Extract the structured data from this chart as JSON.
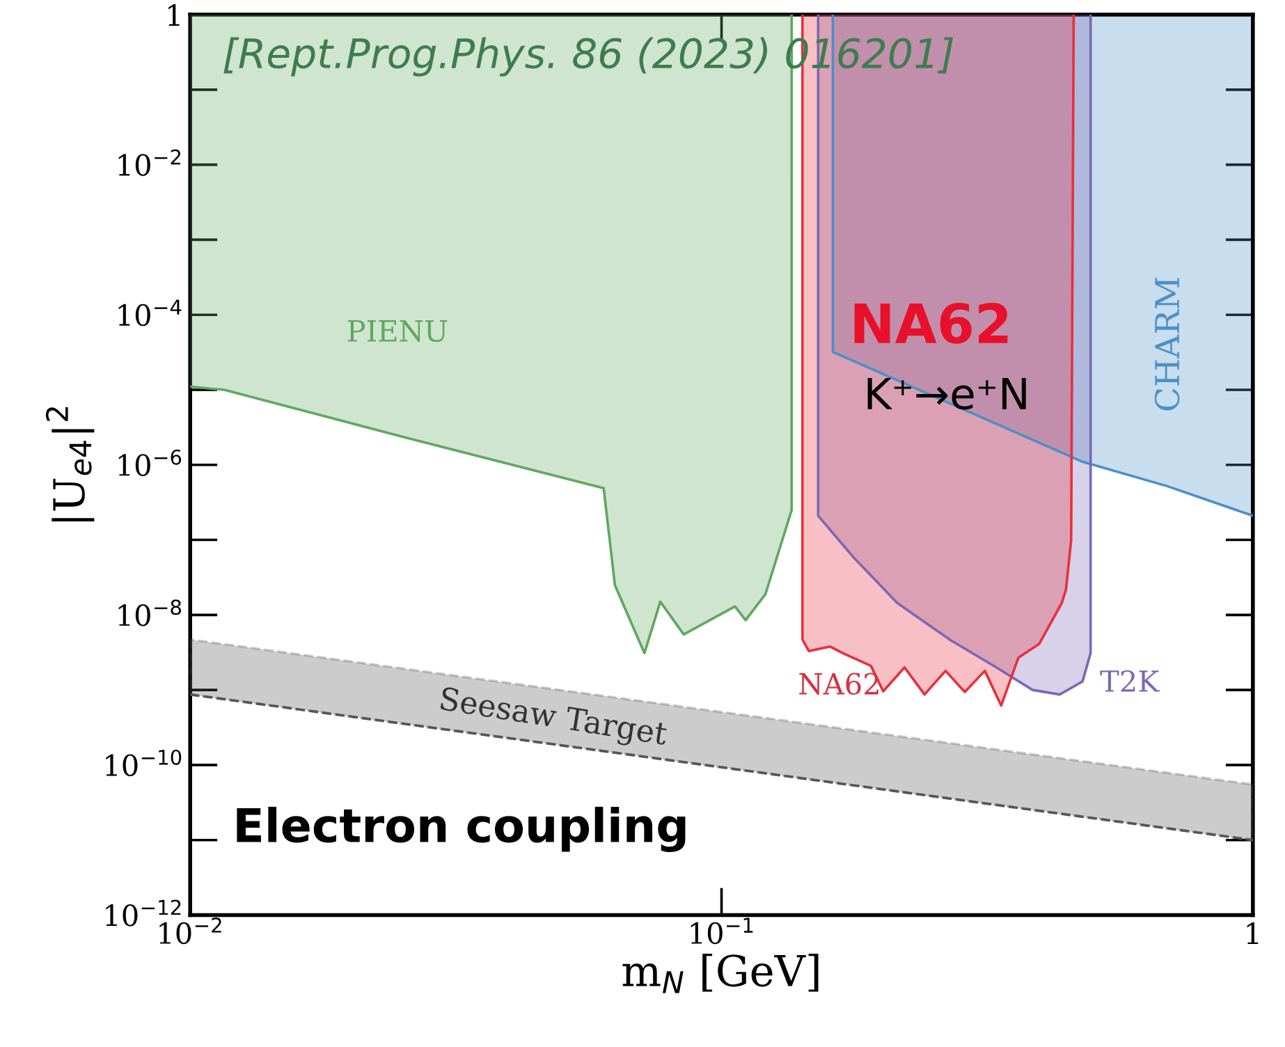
{
  "chart_data": {
    "type": "line",
    "xlabel": "m$_{N}$ [GeV]",
    "ylabel": "|U$_{e4}$|$^{2}$",
    "log": "xy",
    "legend": false,
    "grid": false,
    "xlim": [
      0.01,
      1
    ],
    "xticks": [
      {
        "value": 0.01,
        "label": "10$^{−2}$"
      },
      {
        "value": 0.1,
        "label": "10$^{−1}$"
      },
      1
    ],
    "ylim": [
      1e-12,
      1
    ],
    "yticks": [
      {
        "value": 1e-12,
        "label": "10$^{−12}$"
      },
      {
        "value": 1e-10,
        "label": "10$^{−10}$"
      },
      {
        "value": 1e-08,
        "label": "10$^{−8}$"
      },
      {
        "value": 1e-06,
        "label": "10$^{−6}$"
      },
      {
        "value": 0.0001,
        "label": "10$^{−4}$"
      },
      {
        "value": 0.01,
        "label": "10$^{−2}$"
      },
      1
    ],
    "series": [
      {
        "color": "#4a90c8",
        "x": [
          0.162,
          0.162,
          0.478,
          0.69,
          1.0
        ],
        "values": [
          1,
          3.2e-05,
          1.1e-06,
          5.2e-07,
          2.1e-07
        ],
        "lower": [
          1,
          3.2e-05,
          1.1e-06,
          5.2e-07,
          2.1e-07
        ],
        "upper": [
          1,
          1,
          1,
          1,
          1
        ]
      },
      {
        "color": "#7b68b5",
        "x": [
          0.152,
          0.152,
          0.177,
          0.214,
          0.27,
          0.329,
          0.385,
          0.433,
          0.478,
          0.495,
          0.495
        ],
        "values": [
          1,
          2.1e-07,
          5.9e-08,
          1.45e-08,
          4.6e-09,
          2e-09,
          1e-09,
          8.7e-10,
          1.3e-09,
          3.1e-09,
          1
        ],
        "lower": [
          1,
          2.1e-07,
          5.9e-08,
          1.45e-08,
          4.6e-09,
          2e-09,
          1e-09,
          8.7e-10,
          1.3e-09,
          3.1e-09,
          1
        ],
        "upper": [
          1,
          1,
          1,
          1,
          1,
          1,
          1,
          1,
          1,
          1,
          1
        ]
      },
      {
        "color": "#5fa85f",
        "x": [
          0.01,
          0.0116,
          0.0255,
          0.06,
          0.063,
          0.0716,
          0.0767,
          0.0849,
          0.106,
          0.111,
          0.121,
          0.1355,
          0.1355
        ],
        "values": [
          1.1e-05,
          1e-05,
          2.3e-06,
          4.9e-07,
          2.5e-08,
          3.1e-09,
          1.5e-08,
          5.5e-09,
          1.3e-08,
          8.5e-09,
          1.9e-08,
          2.5e-07,
          1
        ],
        "lower": [
          1.1e-05,
          1e-05,
          2.3e-06,
          4.9e-07,
          2.5e-08,
          3.1e-09,
          1.5e-08,
          5.5e-09,
          1.3e-08,
          8.5e-09,
          1.9e-08,
          2.5e-07,
          1
        ],
        "upper": [
          1,
          1,
          1,
          1,
          1,
          1,
          1,
          1,
          1,
          1,
          1,
          1,
          1
        ]
      },
      {
        "color": "#e8303c",
        "x": [
          0.142,
          0.142,
          0.146,
          0.16,
          0.169,
          0.191,
          0.2015,
          0.221,
          0.241,
          0.264,
          0.287,
          0.313,
          0.336,
          0.362,
          0.396,
          0.437,
          0.445,
          0.455,
          0.46
        ],
        "values": [
          1,
          4.7e-09,
          3.3e-09,
          3.8e-09,
          3.1e-09,
          2.1e-09,
          9.6e-10,
          2e-09,
          8.7e-10,
          1.8e-09,
          9.4e-10,
          1.8e-09,
          6.2e-10,
          2.7e-09,
          4.1e-09,
          1.45e-08,
          2.2e-08,
          1e-07,
          1
        ],
        "lower": [
          1,
          4.7e-09,
          3.3e-09,
          3.8e-09,
          3.1e-09,
          2.1e-09,
          9.6e-10,
          2e-09,
          8.7e-10,
          1.8e-09,
          9.4e-10,
          1.8e-09,
          6.2e-10,
          2.7e-09,
          4.1e-09,
          1.45e-08,
          2.2e-08,
          1e-07,
          1
        ],
        "upper": [
          1,
          1,
          1,
          1,
          1,
          1,
          1,
          1,
          1,
          1,
          1,
          1,
          1,
          1,
          1,
          1,
          1,
          1,
          1
        ]
      },
      {
        "color": "#555555",
        "line_style": "dashed",
        "x": [
          0.01,
          1
        ],
        "values": [
          8.7e-10,
          1e-11
        ],
        "lower": [
          8.7e-10,
          1e-11
        ],
        "upper": [
          4.7e-09,
          5.5e-11
        ]
      }
    ],
    "annotations": [
      "[Rept.Prog.Phys. 86 (2023) 016201]",
      "Electron coupling",
      "PIENU",
      "NA62",
      "K⁺→e⁺N",
      "CHARM",
      "NA62",
      "T2K",
      "Seesaw Target"
    ]
  }
}
